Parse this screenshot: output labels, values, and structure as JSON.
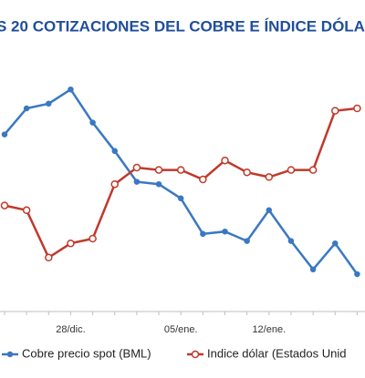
{
  "chart_data": {
    "type": "line",
    "title": "S 20 COTIZACIONES DEL COBRE E ÍNDICE DÓLA",
    "categories": [
      null,
      null,
      null,
      "28/dic.",
      null,
      null,
      null,
      null,
      "05/ene.",
      null,
      null,
      null,
      "12/ene.",
      null,
      null,
      null,
      null
    ],
    "series": [
      {
        "name": "Cobre precio spot (BML)",
        "color": "#3a78c3",
        "values": [
          74,
          85,
          87,
          93,
          79,
          67,
          54,
          53,
          47,
          32,
          33,
          29,
          42,
          29,
          17,
          28,
          15
        ]
      },
      {
        "name": "Indice dólar (Estados Unid",
        "color": "#c0392b",
        "values": [
          44,
          42,
          22,
          28,
          30,
          53,
          60,
          59,
          59,
          55,
          63,
          58,
          56,
          59,
          59,
          84,
          85
        ]
      }
    ],
    "ylim": [
      0,
      100
    ]
  }
}
